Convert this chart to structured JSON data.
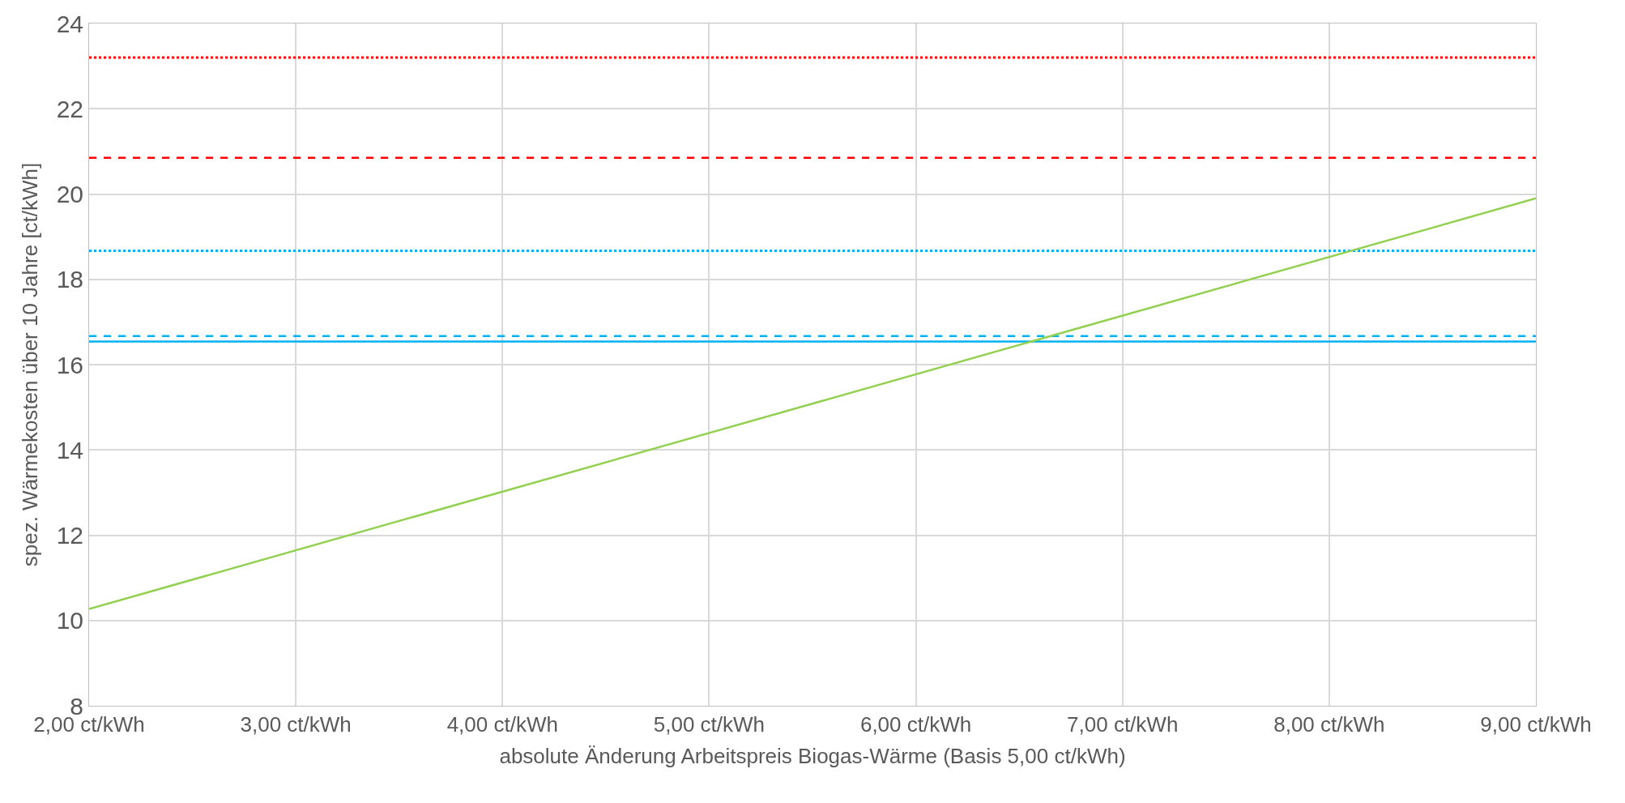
{
  "chart_data": {
    "type": "line",
    "xlabel": "absolute Änderung Arbeitspreis Biogas-Wärme (Basis 5,00 ct/kWh)",
    "ylabel": "spez. Wärmekosten über 10 Jahre [ct/kWh]",
    "x": [
      2,
      9
    ],
    "series": [
      {
        "color": "#ff0000",
        "line_style": "dotted",
        "values": [
          23.2,
          23.2
        ]
      },
      {
        "color": "#ff0000",
        "line_style": "dashed",
        "values": [
          20.85,
          20.85
        ]
      },
      {
        "color": "#00b0f0",
        "line_style": "dotted",
        "values": [
          18.67,
          18.67
        ]
      },
      {
        "color": "#00b0f0",
        "line_style": "dashed",
        "values": [
          16.67,
          16.67
        ]
      },
      {
        "color": "#00b0f0",
        "line_style": "solid",
        "values": [
          16.54,
          16.54
        ]
      },
      {
        "color": "#92d050",
        "line_style": "solid",
        "values": [
          10.27,
          19.9
        ]
      }
    ],
    "xlim": [
      2,
      9
    ],
    "xticks": [
      {
        "value": 2,
        "label": "2,00 ct/kWh"
      },
      {
        "value": 3,
        "label": "3,00 ct/kWh"
      },
      {
        "value": 4,
        "label": "4,00 ct/kWh"
      },
      {
        "value": 5,
        "label": "5,00 ct/kWh"
      },
      {
        "value": 6,
        "label": "6,00 ct/kWh"
      },
      {
        "value": 7,
        "label": "7,00 ct/kWh"
      },
      {
        "value": 8,
        "label": "8,00 ct/kWh"
      },
      {
        "value": 9,
        "label": "9,00 ct/kWh"
      }
    ],
    "ylim": [
      8,
      24
    ],
    "yticks": [
      8,
      10,
      12,
      14,
      16,
      18,
      20,
      22,
      24
    ],
    "grid": true,
    "marker": "none"
  }
}
